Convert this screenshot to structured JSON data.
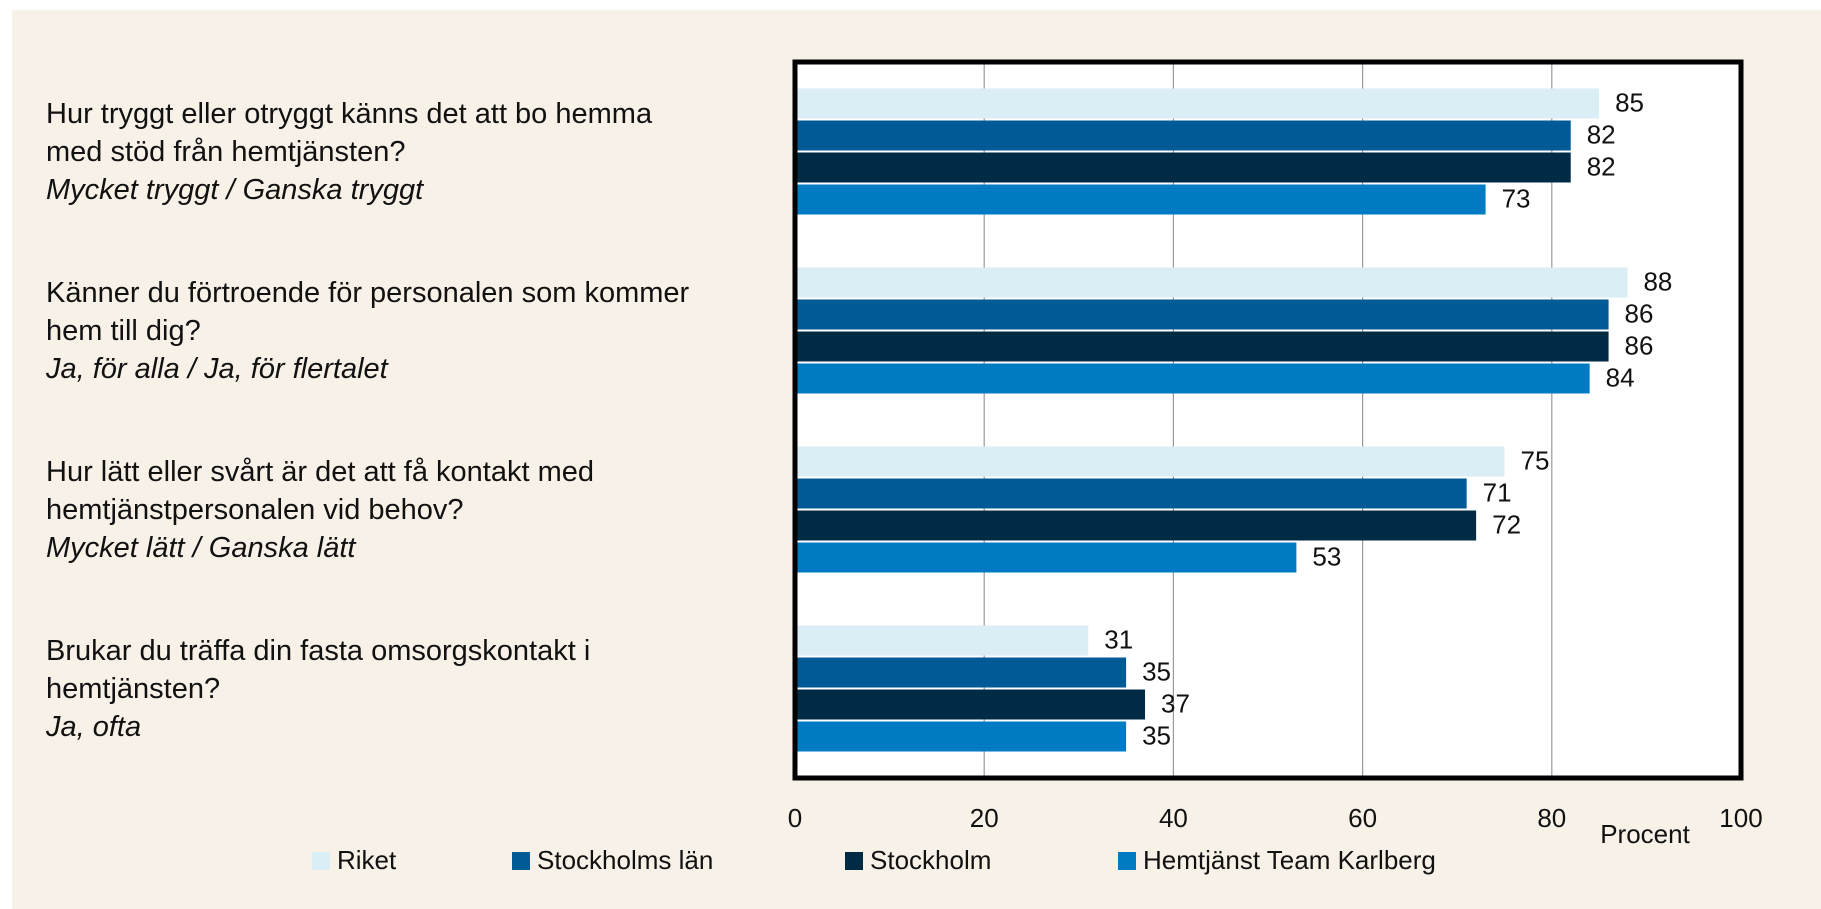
{
  "chart_data": {
    "type": "hbar",
    "categories": [
      "Hur tryggt eller otryggt känns det att bo hemma med stöd från hemtjänsten?",
      "Känner du förtroende för personalen som kommer hem till dig?",
      "Hur lätt eller svårt är det att få kontakt med hemtjänstpersonalen vid behov?",
      "Brukar du träffa din fasta omsorgskontakt i hemtjänsten?"
    ],
    "category_answers": [
      "Mycket tryggt / Ganska tryggt",
      "Ja, för alla / Ja, för flertalet",
      "Mycket lätt / Ganska lätt",
      "Ja, ofta"
    ],
    "series": [
      {
        "name": "Riket",
        "color": "#daeef6",
        "values": [
          85,
          88,
          75,
          31
        ]
      },
      {
        "name": "Stockholms län",
        "color": "#005a96",
        "values": [
          82,
          86,
          71,
          35
        ]
      },
      {
        "name": "Stockholm",
        "color": "#002b45",
        "values": [
          82,
          86,
          72,
          37
        ]
      },
      {
        "name": "Hemtjänst Team Karlberg",
        "color": "#007ac2",
        "values": [
          73,
          84,
          53,
          35
        ]
      }
    ],
    "xlabel": "Procent",
    "xlim": [
      0,
      100
    ],
    "xticks": [
      0,
      20,
      40,
      60,
      80,
      100
    ],
    "grid": true,
    "legend": "bottom"
  }
}
